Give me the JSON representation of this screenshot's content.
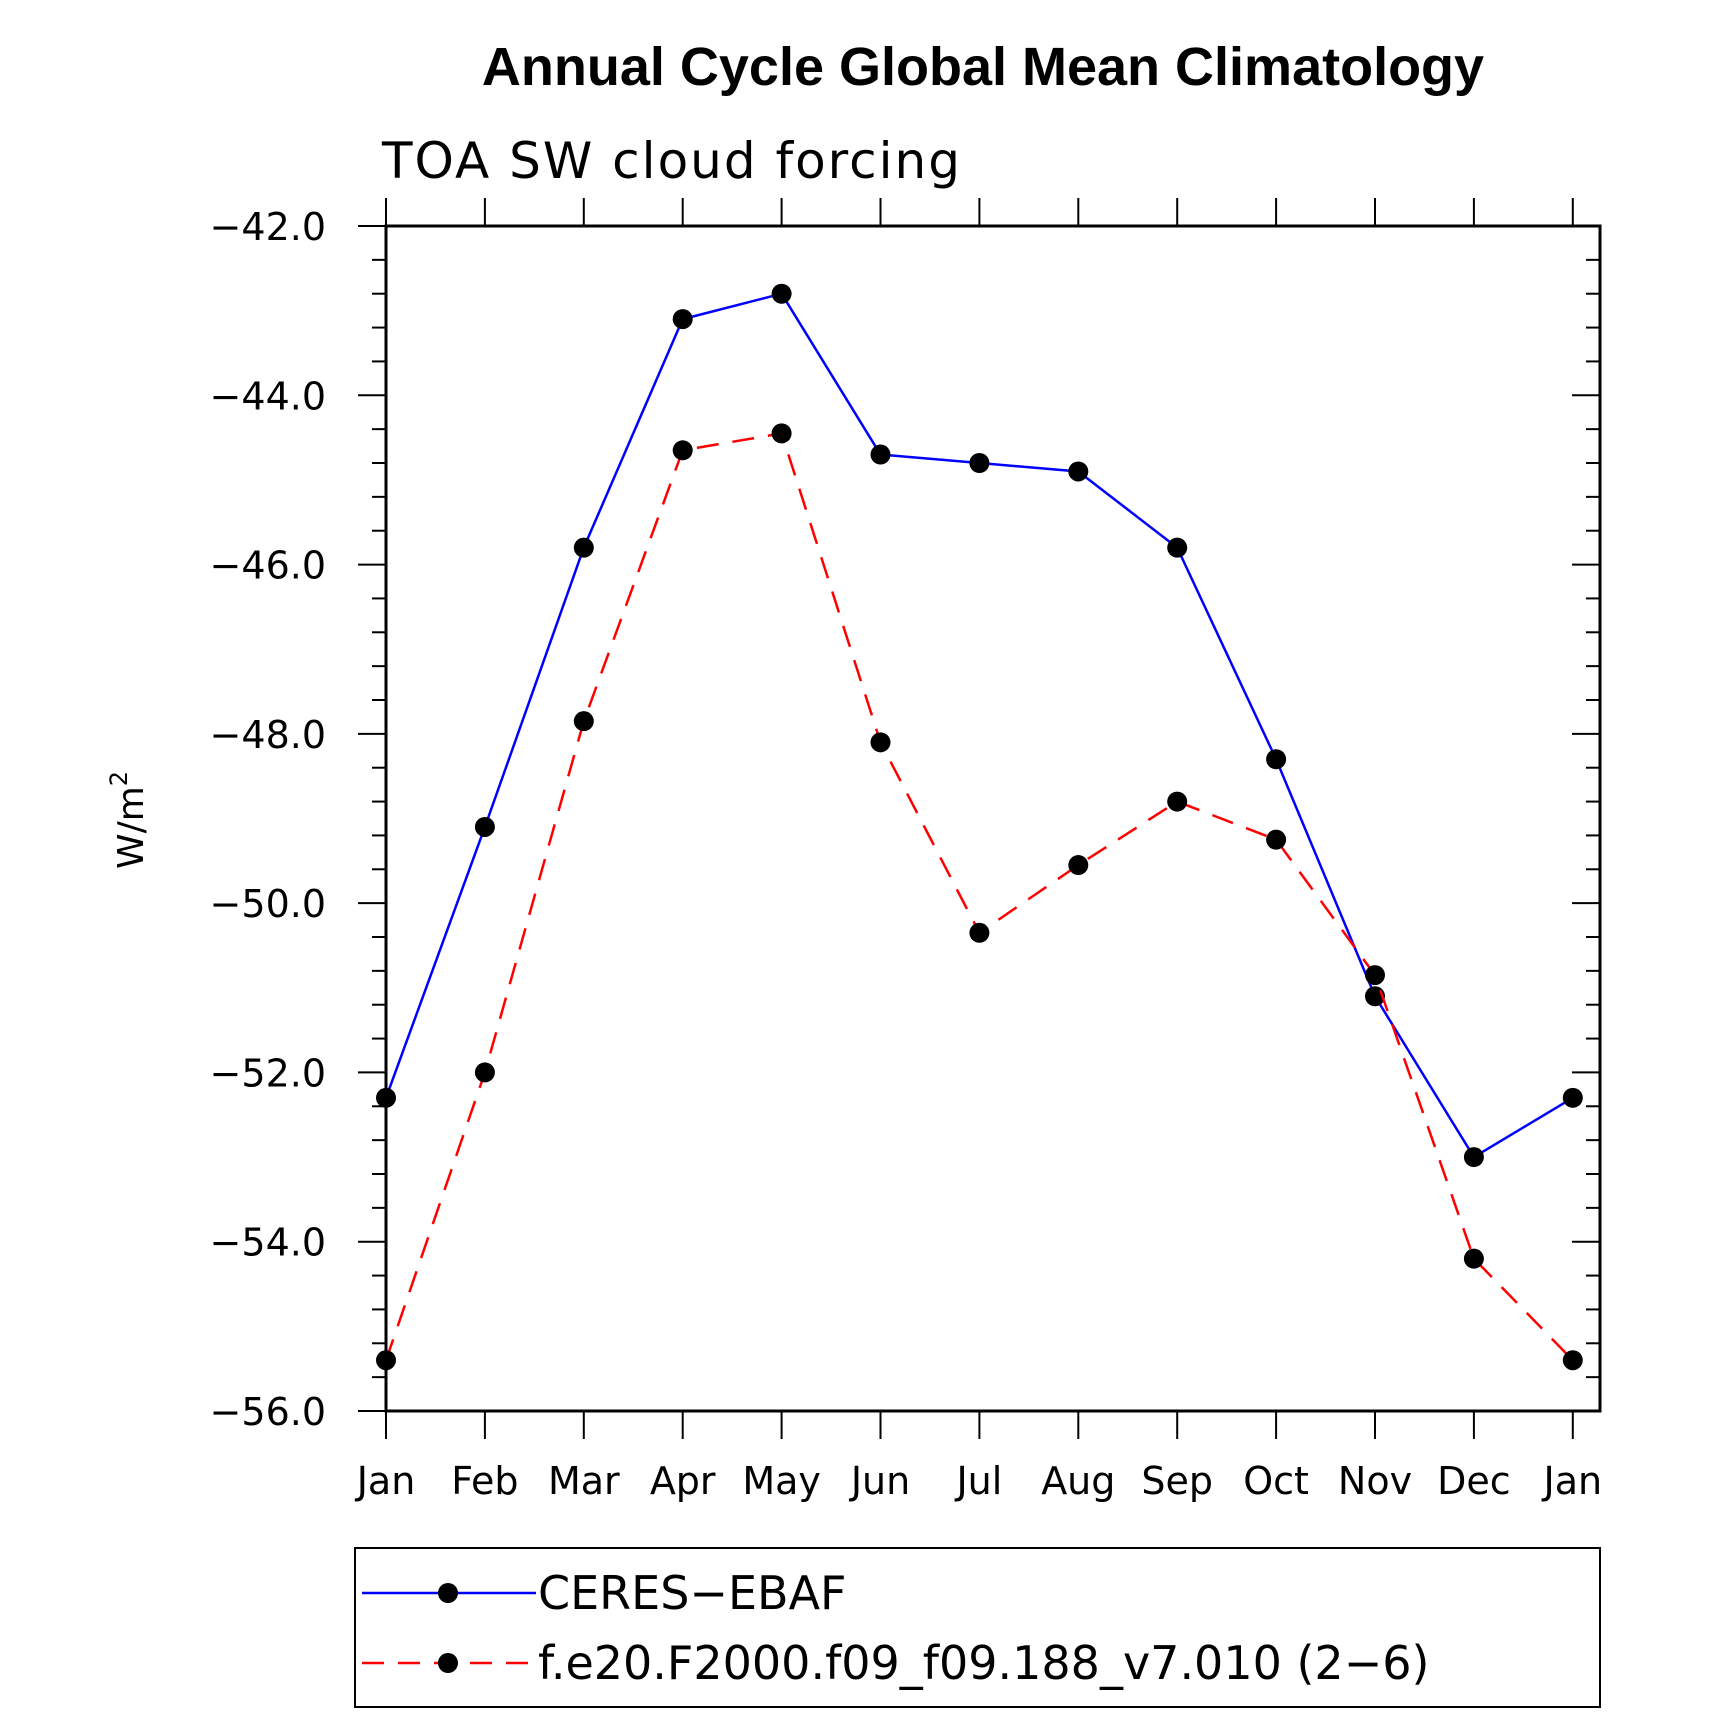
{
  "chart_data": {
    "type": "line",
    "title": "Annual Cycle Global Mean Climatology",
    "subtitle": "TOA SW cloud forcing",
    "ylabel": "W/m",
    "ylabel_superscript": "2",
    "xlabel": "",
    "categories": [
      "Jan",
      "Feb",
      "Mar",
      "Apr",
      "May",
      "Jun",
      "Jul",
      "Aug",
      "Sep",
      "Oct",
      "Nov",
      "Dec",
      "Jan"
    ],
    "ylim": [
      -56.0,
      -42.0
    ],
    "yticks": [
      -42.0,
      -44.0,
      -46.0,
      -48.0,
      -50.0,
      -52.0,
      -54.0,
      -56.0
    ],
    "ytick_labels": [
      "−42.0",
      "−44.0",
      "−46.0",
      "−48.0",
      "−50.0",
      "−52.0",
      "−54.0",
      "−56.0"
    ],
    "series": [
      {
        "name": "CERES−EBAF",
        "color": "#0000ff",
        "dash": "solid",
        "marker": "filled-circle",
        "values": [
          -52.3,
          -49.1,
          -45.8,
          -43.1,
          -42.8,
          -44.7,
          -44.8,
          -44.9,
          -45.8,
          -48.3,
          -51.1,
          -53.0,
          -52.3
        ]
      },
      {
        "name": "f.e20.F2000.f09_f09.188_v7.010 (2−6)",
        "color": "#ff0000",
        "dash": "dashed",
        "marker": "filled-circle",
        "values": [
          -55.4,
          -52.0,
          -47.85,
          -44.65,
          -44.45,
          -48.1,
          -50.35,
          -49.55,
          -48.8,
          -49.25,
          -50.85,
          -54.2,
          -55.4
        ]
      }
    ],
    "legend_position": "bottom"
  }
}
